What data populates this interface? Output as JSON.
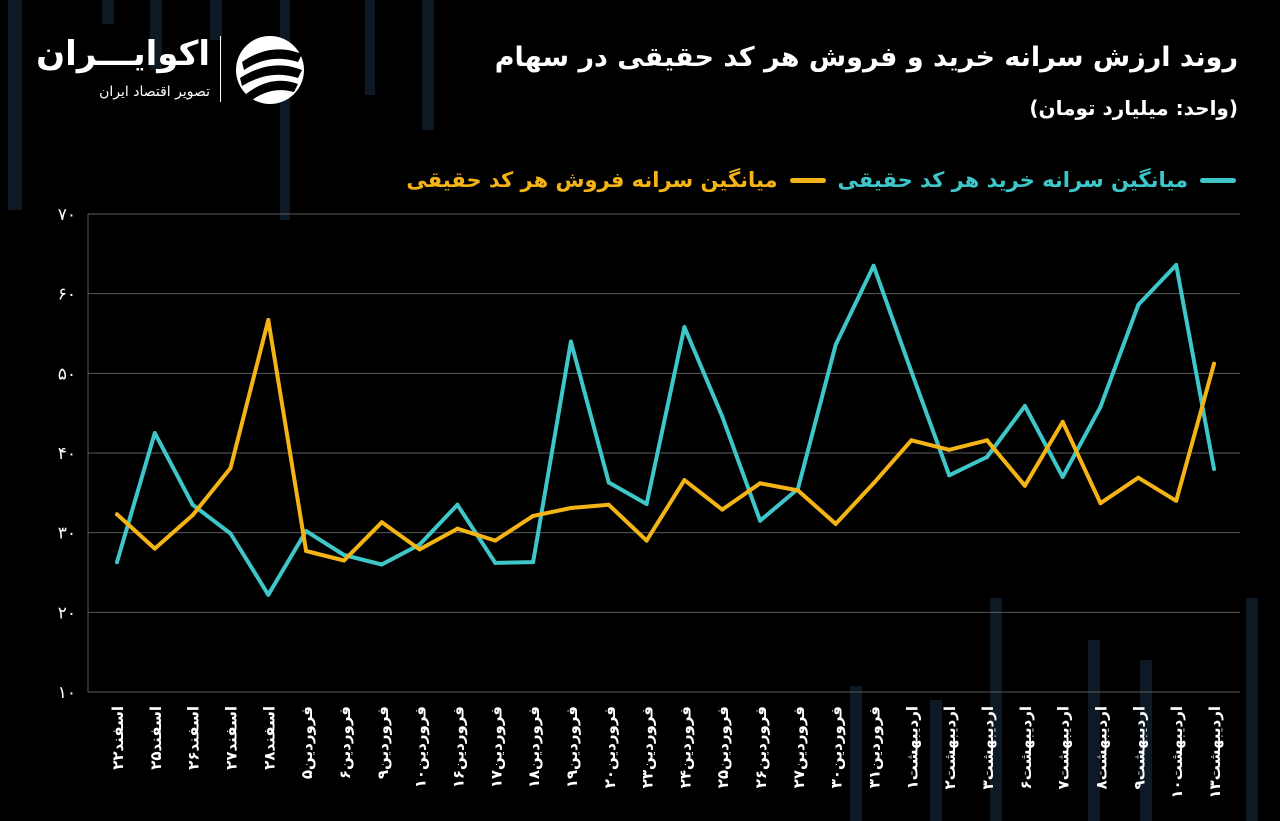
{
  "header": {
    "title": "روند ارزش سرانه خرید و فروش هر کد حقیقی در سهام",
    "subtitle": "(واحد: میلیارد تومان)"
  },
  "logo": {
    "name": "اکوایـــران",
    "tagline": "تصویر اقتصاد ایران",
    "icon": "ekoiran-logo-icon"
  },
  "colors": {
    "background": "#000000",
    "buy": "#3ec6c9",
    "sell": "#f5b416",
    "grid": "#5a5a5a"
  },
  "chart_data": {
    "type": "line",
    "x": [
      "اسفند۲۲",
      "اسفند۲۵",
      "اسفند۲۶",
      "اسفند۲۷",
      "اسفند۲۸",
      "فروردین۵",
      "فروردین۶",
      "فروردین۹",
      "فروردین۱۰",
      "فروردین۱۶",
      "فروردین۱۷",
      "فروردین۱۸",
      "فروردین۱۹",
      "فروردین۲۰",
      "فروردین۲۳",
      "فروردین۲۴",
      "فروردین۲۵",
      "فروردین۲۶",
      "فروردین۲۷",
      "فروردین۳۰",
      "فروردین۳۱",
      "اردیبهشت۱",
      "اردیبهشت۲",
      "اردیبهشت۳",
      "اردیبهشت۶",
      "اردیبهشت۷",
      "اردیبهشت۸",
      "اردیبهشت۹",
      "اردیبهشت۱۰",
      "اردیبهشت۱۳"
    ],
    "series": [
      {
        "name": "میانگین سرانه خرید هر کد حقیقی",
        "color": "#3ec6c9",
        "values": [
          26.3,
          42.5,
          33.5,
          29.9,
          22.2,
          30.2,
          27.2,
          26.0,
          28.5,
          33.5,
          26.2,
          26.3,
          54.0,
          36.3,
          33.6,
          55.8,
          44.6,
          31.5,
          35.5,
          53.6,
          63.5,
          50.2,
          37.2,
          39.5,
          45.9,
          37.0,
          45.8,
          58.6,
          63.6,
          38.0
        ]
      },
      {
        "name": "میانگین سرانه فروش هر کد حقیقی",
        "color": "#f5b416",
        "values": [
          32.3,
          28.0,
          32.2,
          38.1,
          56.7,
          27.7,
          26.5,
          31.3,
          27.9,
          30.5,
          29.0,
          32.1,
          33.1,
          33.5,
          29.0,
          36.6,
          32.9,
          36.2,
          35.3,
          31.1,
          36.2,
          41.6,
          40.4,
          41.6,
          35.9,
          43.9,
          33.7,
          36.9,
          34.0,
          51.2
        ]
      }
    ],
    "y_ticks": [
      "۱۰",
      "۲۰",
      "۳۰",
      "۴۰",
      "۵۰",
      "۶۰",
      "۷۰"
    ],
    "ylim": [
      10,
      70
    ],
    "grid": true,
    "legend": "top-right"
  }
}
